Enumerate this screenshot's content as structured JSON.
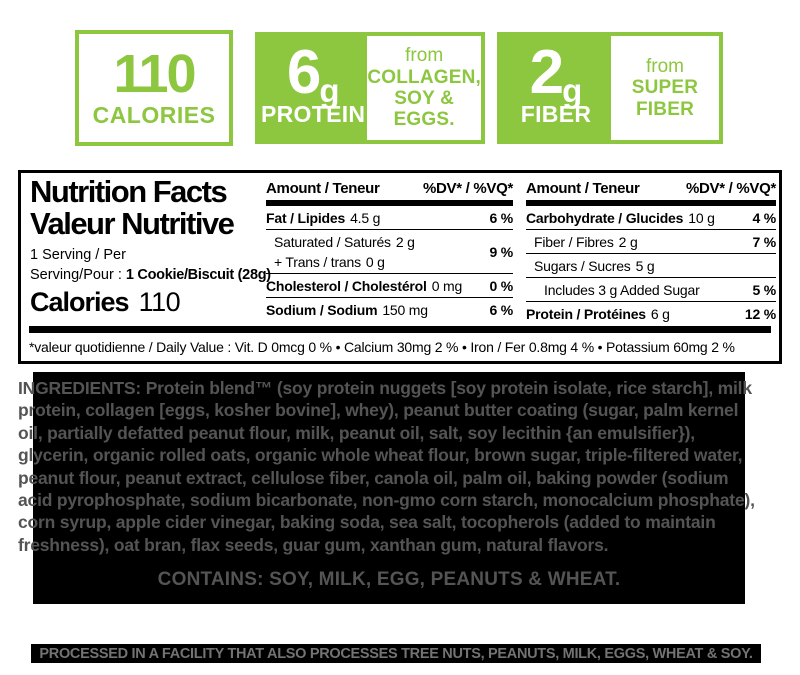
{
  "theme": {
    "accent_green": "#8DC63F",
    "ink": "#000000",
    "ingredients_text_gray": "#545454",
    "facility_text_gray": "#737373"
  },
  "badges": {
    "calories": {
      "value": "110",
      "label": "CALORIES"
    },
    "protein": {
      "amount": "6",
      "unit": "g",
      "label": "PROTEIN",
      "from_word": "from",
      "from_lines": [
        "COLLAGEN,",
        "SOY &",
        "EGGS."
      ]
    },
    "fiber": {
      "amount": "2",
      "unit": "g",
      "label": "FIBER",
      "from_word": "from",
      "from_lines": [
        "SUPER",
        "FIBER"
      ]
    }
  },
  "nutrition_panel": {
    "title_en": "Nutrition Facts",
    "title_fr": "Valeur Nutritive",
    "serving_line1": "1 Serving / Per",
    "serving_line2_label": "Serving/Pour :",
    "serving_line2_value": "1 Cookie/Biscuit (28g)",
    "calories_label": "Calories",
    "calories_value": "110",
    "column_header_left": "Amount / Teneur",
    "column_header_right": "%DV* / %VQ*",
    "column2": {
      "rows": [
        {
          "name": "Fat / Lipides",
          "value": "4.5 g",
          "dv": "6 %"
        },
        {
          "lines": [
            {
              "name": "Saturated / Saturés",
              "value": "2 g"
            },
            {
              "name": "+ Trans / trans",
              "value": "0 g"
            }
          ],
          "dv": "9 %"
        },
        {
          "name": "Cholesterol / Cholestérol",
          "value": "0 mg",
          "dv": "0 %"
        },
        {
          "name": "Sodium / Sodium",
          "value": "150 mg",
          "dv": "6 %"
        }
      ]
    },
    "column3": {
      "rows": [
        {
          "name": "Carbohydrate / Glucides",
          "value": "10 g",
          "dv": "4 %"
        },
        {
          "name": "Fiber / Fibres",
          "value": "2 g",
          "dv": "7 %"
        },
        {
          "name": "Sugars / Sucres",
          "value": "5 g",
          "dv": ""
        },
        {
          "name": "Includes 3 g Added Sugar",
          "value": "",
          "dv": "5 %"
        },
        {
          "name": "Protein / Protéines",
          "value": "6 g",
          "dv": "12 %"
        }
      ]
    },
    "footnote": "*valeur quotidienne / Daily Value : Vit. D 0mcg 0 % • Calcium 30mg 2 % • Iron / Fer 0.8mg 4 % • Potassium 60mg 2 %"
  },
  "ingredients": {
    "label": "INGREDIENTS:",
    "text": " Protein blend™ (soy protein nuggets [soy protein isolate, rice starch], milk protein, collagen [eggs, kosher bovine], whey), peanut butter coating (sugar, palm kernel oil, partially defatted peanut flour, milk, peanut oil, salt, soy lecithin {an emulsifier}), glycerin, organic rolled oats, organic whole wheat flour, brown sugar, triple-filtered water, peanut flour, peanut extract, cellulose fiber, canola oil, palm oil, baking powder (sodium acid pyrophosphate, sodium bicarbonate, non-gmo corn starch, monocalcium phosphate), corn syrup, apple cider vinegar, baking soda, sea salt, tocopherols (added to maintain freshness), oat bran, flax seeds, guar gum, xanthan gum, natural flavors.",
    "contains": "CONTAINS: SOY, MILK, EGG, PEANUTS & WHEAT."
  },
  "facility_notice": "PROCESSED IN A FACILITY THAT ALSO PROCESSES TREE NUTS, PEANUTS, MILK, EGGS, WHEAT & SOY."
}
